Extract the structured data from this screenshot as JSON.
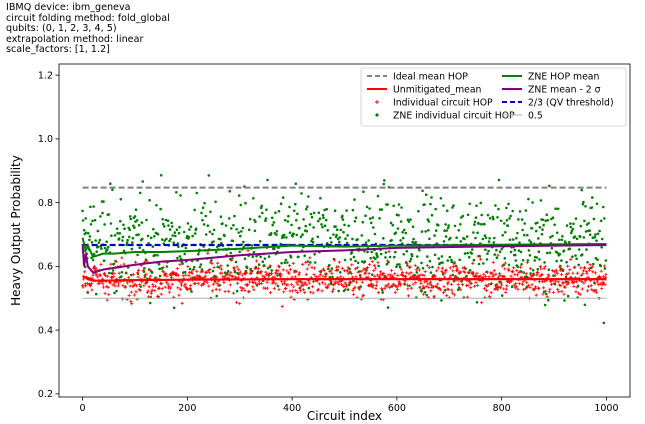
{
  "header": {
    "lines": [
      "IBMQ device: ibm_geneva",
      "circuit folding method: fold_global",
      "qubits: (0, 1, 2, 3, 4, 5)",
      "extrapolation method: linear",
      "scale_factors: [1, 1.2]"
    ]
  },
  "chart_data": {
    "type": "scatter",
    "xlabel": "Circuit index",
    "ylabel": "Heavy Output Probability",
    "xlim": [
      -45,
      1045
    ],
    "ylim": [
      0.19,
      1.235
    ],
    "xticks": [
      0,
      200,
      400,
      600,
      800,
      1000
    ],
    "yticks": [
      0.2,
      0.4,
      0.6,
      0.8,
      1.0,
      1.2
    ],
    "xtick_labels": [
      "0",
      "200",
      "400",
      "600",
      "800",
      "1000"
    ],
    "ytick_labels": [
      "0.2",
      "0.4",
      "0.6",
      "0.8",
      "1.0",
      "1.2"
    ],
    "grid": false,
    "legend_placement": "top-right",
    "colors": {
      "ideal": "#808080",
      "unmitigated": "#ff0000",
      "individual": "#ff0000",
      "zne_individual": "#008000",
      "zne_mean": "#008000",
      "zne_mean_minus": "#800080",
      "threshold": "#0000cc",
      "half": "#b0b0b0"
    },
    "legend": [
      {
        "key": "ideal",
        "label": "Ideal mean HOP",
        "style": "dashed"
      },
      {
        "key": "unmitigated",
        "label": "Unmitigated_mean",
        "style": "line"
      },
      {
        "key": "individual",
        "label": "Individual circuit HOP",
        "style": "plus"
      },
      {
        "key": "zne_individual",
        "label": "ZNE individual circuit HOP",
        "style": "dot"
      },
      {
        "key": "zne_mean",
        "label": "ZNE HOP mean",
        "style": "line"
      },
      {
        "key": "zne_mean_minus",
        "label": "ZNE mean - 2 σ",
        "style": "line"
      },
      {
        "key": "threshold",
        "label": "2/3 (QV threshold)",
        "style": "dashed"
      },
      {
        "key": "half",
        "label": "0.5",
        "style": "thin"
      }
    ],
    "series": [
      {
        "name": "Ideal mean HOP",
        "x": [
          0,
          1000
        ],
        "values": [
          0.847,
          0.847
        ]
      },
      {
        "name": "2/3 (QV threshold)",
        "x": [
          0,
          1000
        ],
        "values": [
          0.667,
          0.667
        ]
      },
      {
        "name": "0.5",
        "x": [
          0,
          1000
        ],
        "values": [
          0.5,
          0.5
        ]
      },
      {
        "name": "Unmitigated_mean",
        "x": [
          0,
          5,
          10,
          20,
          40,
          100,
          200,
          400,
          600,
          800,
          1000
        ],
        "values": [
          0.57,
          0.565,
          0.56,
          0.555,
          0.555,
          0.557,
          0.558,
          0.56,
          0.56,
          0.56,
          0.56
        ]
      },
      {
        "name": "ZNE HOP mean",
        "x": [
          0,
          3,
          6,
          10,
          20,
          40,
          60,
          100,
          150,
          200,
          300,
          400,
          500,
          600,
          800,
          1000
        ],
        "values": [
          0.69,
          0.67,
          0.65,
          0.665,
          0.63,
          0.64,
          0.64,
          0.645,
          0.645,
          0.648,
          0.655,
          0.665,
          0.662,
          0.665,
          0.668,
          0.67
        ]
      },
      {
        "name": "ZNE mean - 2 σ",
        "x": [
          0,
          3,
          6,
          10,
          20,
          30,
          40,
          60,
          100,
          150,
          200,
          300,
          400,
          500,
          600,
          800,
          1000
        ],
        "values": [
          0.67,
          0.6,
          0.64,
          0.6,
          0.58,
          0.585,
          0.59,
          0.595,
          0.605,
          0.615,
          0.62,
          0.635,
          0.645,
          0.65,
          0.658,
          0.663,
          0.667
        ]
      }
    ],
    "scatter": {
      "count": 1000,
      "individual_mean": 0.56,
      "individual_spread": 0.04,
      "zne_mean": 0.67,
      "zne_spread": 0.13
    }
  }
}
